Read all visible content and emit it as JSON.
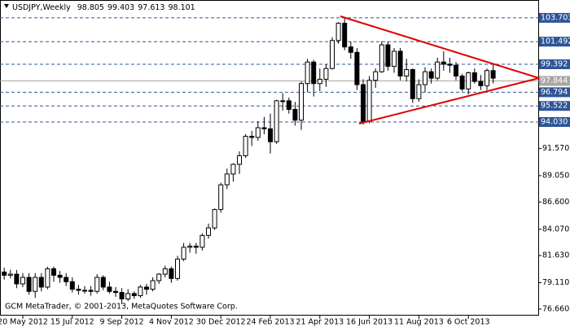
{
  "chart_data": {
    "type": "candlestick",
    "title": "USDJPY,Weekly",
    "footer": "GCM MetaTrader, © 2001-2013, MetaQuotes Software Corp.",
    "categories": [
      null,
      null,
      null,
      "20 May 2012",
      null,
      null,
      null,
      null,
      null,
      null,
      null,
      "15 Jul 2012",
      null,
      null,
      null,
      null,
      null,
      null,
      null,
      "9 Sep 2012",
      null,
      null,
      null,
      null,
      null,
      null,
      null,
      "4 Nov 2012",
      null,
      null,
      null,
      null,
      null,
      null,
      null,
      "30 Dec 2012",
      null,
      null,
      null,
      null,
      null,
      null,
      null,
      "24 Feb 2013",
      null,
      null,
      null,
      null,
      null,
      null,
      null,
      "21 Apr 2013",
      null,
      null,
      null,
      null,
      null,
      null,
      null,
      "16 Jun 2013",
      null,
      null,
      null,
      null,
      null,
      null,
      null,
      "11 Aug 2013",
      null,
      null,
      null,
      null,
      null,
      null,
      null,
      "6 Oct 2013",
      null,
      null,
      null,
      null
    ],
    "open": [
      80.1,
      79.8,
      79.9,
      79.0,
      79.6,
      78.3,
      79.6,
      78.7,
      80.4,
      79.8,
      79.6,
      79.2,
      78.5,
      78.4,
      78.4,
      78.3,
      79.6,
      78.7,
      78.3,
      78.2,
      77.6,
      78.1,
      77.9,
      78.7,
      78.5,
      79.3,
      79.9,
      80.4,
      79.5,
      81.3,
      82.4,
      82.5,
      82.4,
      83.5,
      84.2,
      85.9,
      88.2,
      89.2,
      90.1,
      90.9,
      92.7,
      92.6,
      93.5,
      93.4,
      92.2,
      96.0,
      96.0,
      95.2,
      94.2,
      97.6,
      99.6,
      97.6,
      98.0,
      99.0,
      101.6,
      103.2,
      101.0,
      100.5,
      97.5,
      94.1,
      97.9,
      98.7,
      101.2,
      99.2,
      100.6,
      98.3,
      98.9,
      96.2,
      97.5,
      98.7,
      98.1,
      99.6,
      99.4,
      99.3,
      98.3,
      97.1,
      98.6,
      97.8,
      97.4,
      98.805
    ],
    "high": [
      80.5,
      80.3,
      80.3,
      80.0,
      80.0,
      80.0,
      80.0,
      80.6,
      80.6,
      80.2,
      80.0,
      79.6,
      78.9,
      78.8,
      78.8,
      79.9,
      79.8,
      79.2,
      78.7,
      78.6,
      78.5,
      78.3,
      78.9,
      79.0,
      79.6,
      80.0,
      80.7,
      80.6,
      81.6,
      82.8,
      82.8,
      82.8,
      83.7,
      84.6,
      86.0,
      88.4,
      89.7,
      90.2,
      91.3,
      92.9,
      93.2,
      94.1,
      94.5,
      94.8,
      96.1,
      96.7,
      96.3,
      95.9,
      97.8,
      99.9,
      99.8,
      99.0,
      99.4,
      101.9,
      103.3,
      103.703,
      101.5,
      100.9,
      98.0,
      98.3,
      99.0,
      101.5,
      101.5,
      100.9,
      100.9,
      99.9,
      99.0,
      98.0,
      99.1,
      99.0,
      100.0,
      100.6,
      100.0,
      99.6,
      98.5,
      98.7,
      99.0,
      98.4,
      99.0,
      99.403
    ],
    "low": [
      79.4,
      79.5,
      78.6,
      78.7,
      78.0,
      77.7,
      78.3,
      78.5,
      79.2,
      79.1,
      78.8,
      78.2,
      78.0,
      78.1,
      77.9,
      78.1,
      78.4,
      78.1,
      77.8,
      77.13,
      77.4,
      77.6,
      77.7,
      78.0,
      78.3,
      79.0,
      79.6,
      79.1,
      79.3,
      81.1,
      81.9,
      81.8,
      82.1,
      83.2,
      84.0,
      85.6,
      87.8,
      88.5,
      89.2,
      90.7,
      91.8,
      92.3,
      92.9,
      91.1,
      92.0,
      95.1,
      94.8,
      93.7,
      93.3,
      96.8,
      96.4,
      96.9,
      97.3,
      98.9,
      101.3,
      100.7,
      99.9,
      97.0,
      93.79,
      93.9,
      97.2,
      98.6,
      98.8,
      98.6,
      97.9,
      97.8,
      95.8,
      95.9,
      96.8,
      97.6,
      97.9,
      98.8,
      98.6,
      97.9,
      96.9,
      96.6,
      97.6,
      97.0,
      97.0,
      97.613
    ],
    "close": [
      79.8,
      79.9,
      79.0,
      79.6,
      78.3,
      79.6,
      78.7,
      80.4,
      79.8,
      79.6,
      79.2,
      78.5,
      78.4,
      78.4,
      78.3,
      79.6,
      78.7,
      78.3,
      78.2,
      77.6,
      78.1,
      77.9,
      78.7,
      78.5,
      79.3,
      79.9,
      80.4,
      79.5,
      81.3,
      82.4,
      82.5,
      82.4,
      83.5,
      84.2,
      85.9,
      88.2,
      89.2,
      90.1,
      90.9,
      92.7,
      92.6,
      93.5,
      93.4,
      92.2,
      96.0,
      96.0,
      95.2,
      94.2,
      97.6,
      99.6,
      97.6,
      98.0,
      99.0,
      101.6,
      103.2,
      101.0,
      100.5,
      97.5,
      94.1,
      97.9,
      98.7,
      101.2,
      99.2,
      100.6,
      98.3,
      98.9,
      96.2,
      97.5,
      98.7,
      98.1,
      99.6,
      99.4,
      99.3,
      98.3,
      97.1,
      98.6,
      97.8,
      97.4,
      98.805,
      98.101
    ],
    "up_color": "#ffffff",
    "down_color": "#000000",
    "wick_color": "#000000",
    "ylim": [
      75.9,
      105.36
    ],
    "yticks": [
      {
        "value": 76.66,
        "label": "76.660"
      },
      {
        "value": 79.11,
        "label": "79.110"
      },
      {
        "value": 81.63,
        "label": "81.630"
      },
      {
        "value": 84.07,
        "label": "84.070"
      },
      {
        "value": 86.6,
        "label": "86.600"
      },
      {
        "value": 89.05,
        "label": "89.050"
      },
      {
        "value": 91.57,
        "label": "91.570"
      }
    ],
    "levels": [
      103.703,
      101.492,
      99.392,
      96.794,
      95.522,
      {
        "value": 94.03,
        "label": "94.030"
      }
    ],
    "level_color": "#2f5597",
    "bid": 97.844,
    "bid_color": "#a6a6a6"
  }
}
